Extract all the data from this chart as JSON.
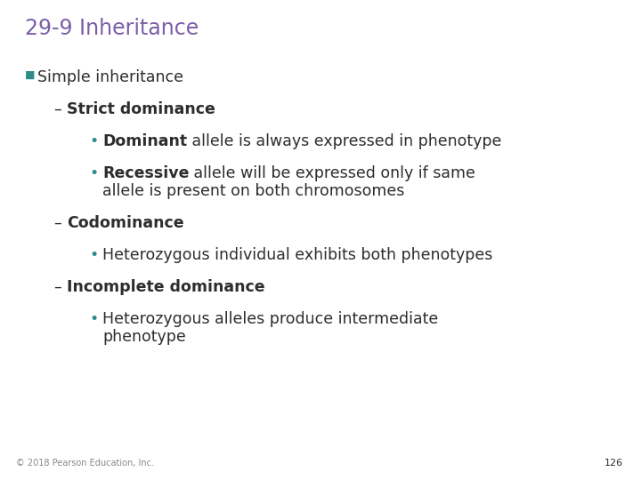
{
  "title": "29-9 Inheritance",
  "title_color": "#7B5EA7",
  "background_color": "#FFFFFF",
  "text_color": "#3D3D3D",
  "teal_color": "#2E8B8B",
  "dark_color": "#2D2D2D",
  "footer": "© 2018 Pearson Education, Inc.",
  "page_number": "126",
  "title_fontsize": 17,
  "body_fontsize": 12.5,
  "footer_fontsize": 7,
  "page_fontsize": 8
}
